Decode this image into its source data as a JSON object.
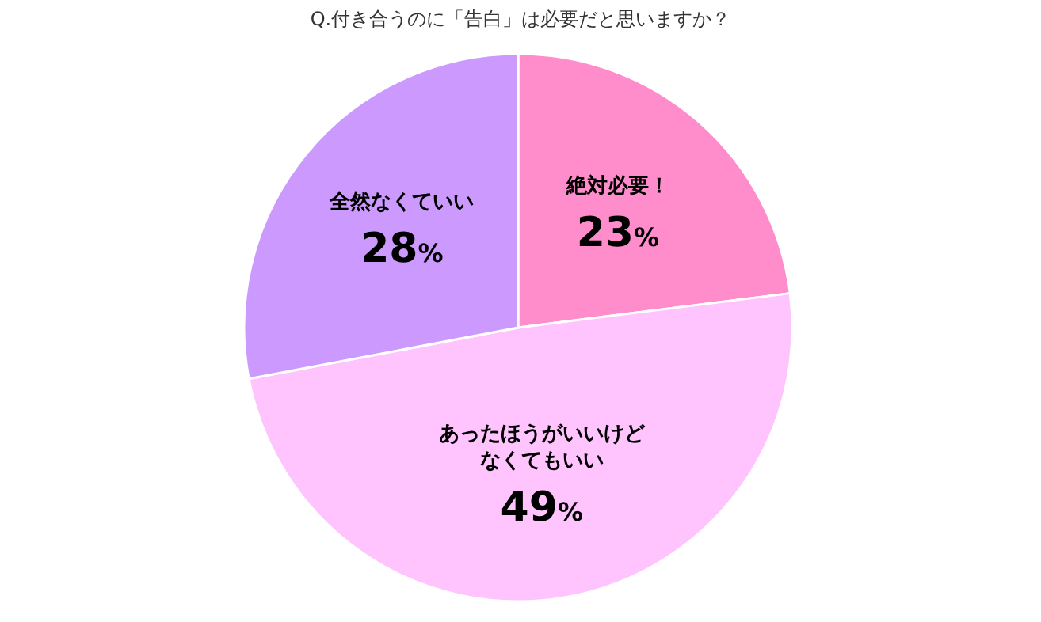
{
  "chart_data": {
    "type": "pie",
    "title": "Q.付き合うのに「告白」は必要だと思いますか？",
    "categories": [
      "絶対必要！",
      "あったほうがいいけどなくてもいい",
      "全然なくていい"
    ],
    "values": [
      23,
      49,
      28
    ],
    "value_labels": [
      "23%",
      "49%",
      "28%"
    ],
    "colors": [
      "#ff8ccb",
      "#ffc4fe",
      "#cc99ff"
    ]
  }
}
